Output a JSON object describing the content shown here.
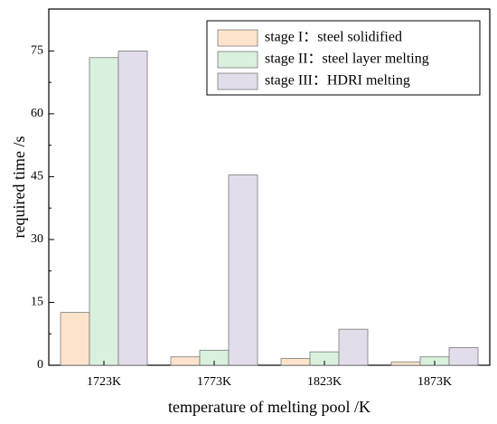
{
  "chart_data": {
    "type": "bar",
    "title": "",
    "xlabel": "temperature of melting pool  /K",
    "ylabel": "required time /s",
    "categories": [
      "1723K",
      "1773K",
      "1823K",
      "1873K"
    ],
    "ylim": [
      0,
      85
    ],
    "yticks": [
      0,
      15,
      30,
      45,
      60,
      75
    ],
    "grid": false,
    "legend_position": "top-right",
    "series": [
      {
        "name": "stage I：steel solidified",
        "values": [
          12.6,
          2.0,
          1.6,
          0.8
        ],
        "color": "#fde3cb"
      },
      {
        "name": "stage II：steel layer melting",
        "values": [
          73.4,
          3.6,
          3.2,
          2.0
        ],
        "color": "#d8f0dc"
      },
      {
        "name": "stage III：HDRI melting",
        "values": [
          75.0,
          45.4,
          8.6,
          4.2
        ],
        "color": "#e3dcea"
      }
    ]
  }
}
